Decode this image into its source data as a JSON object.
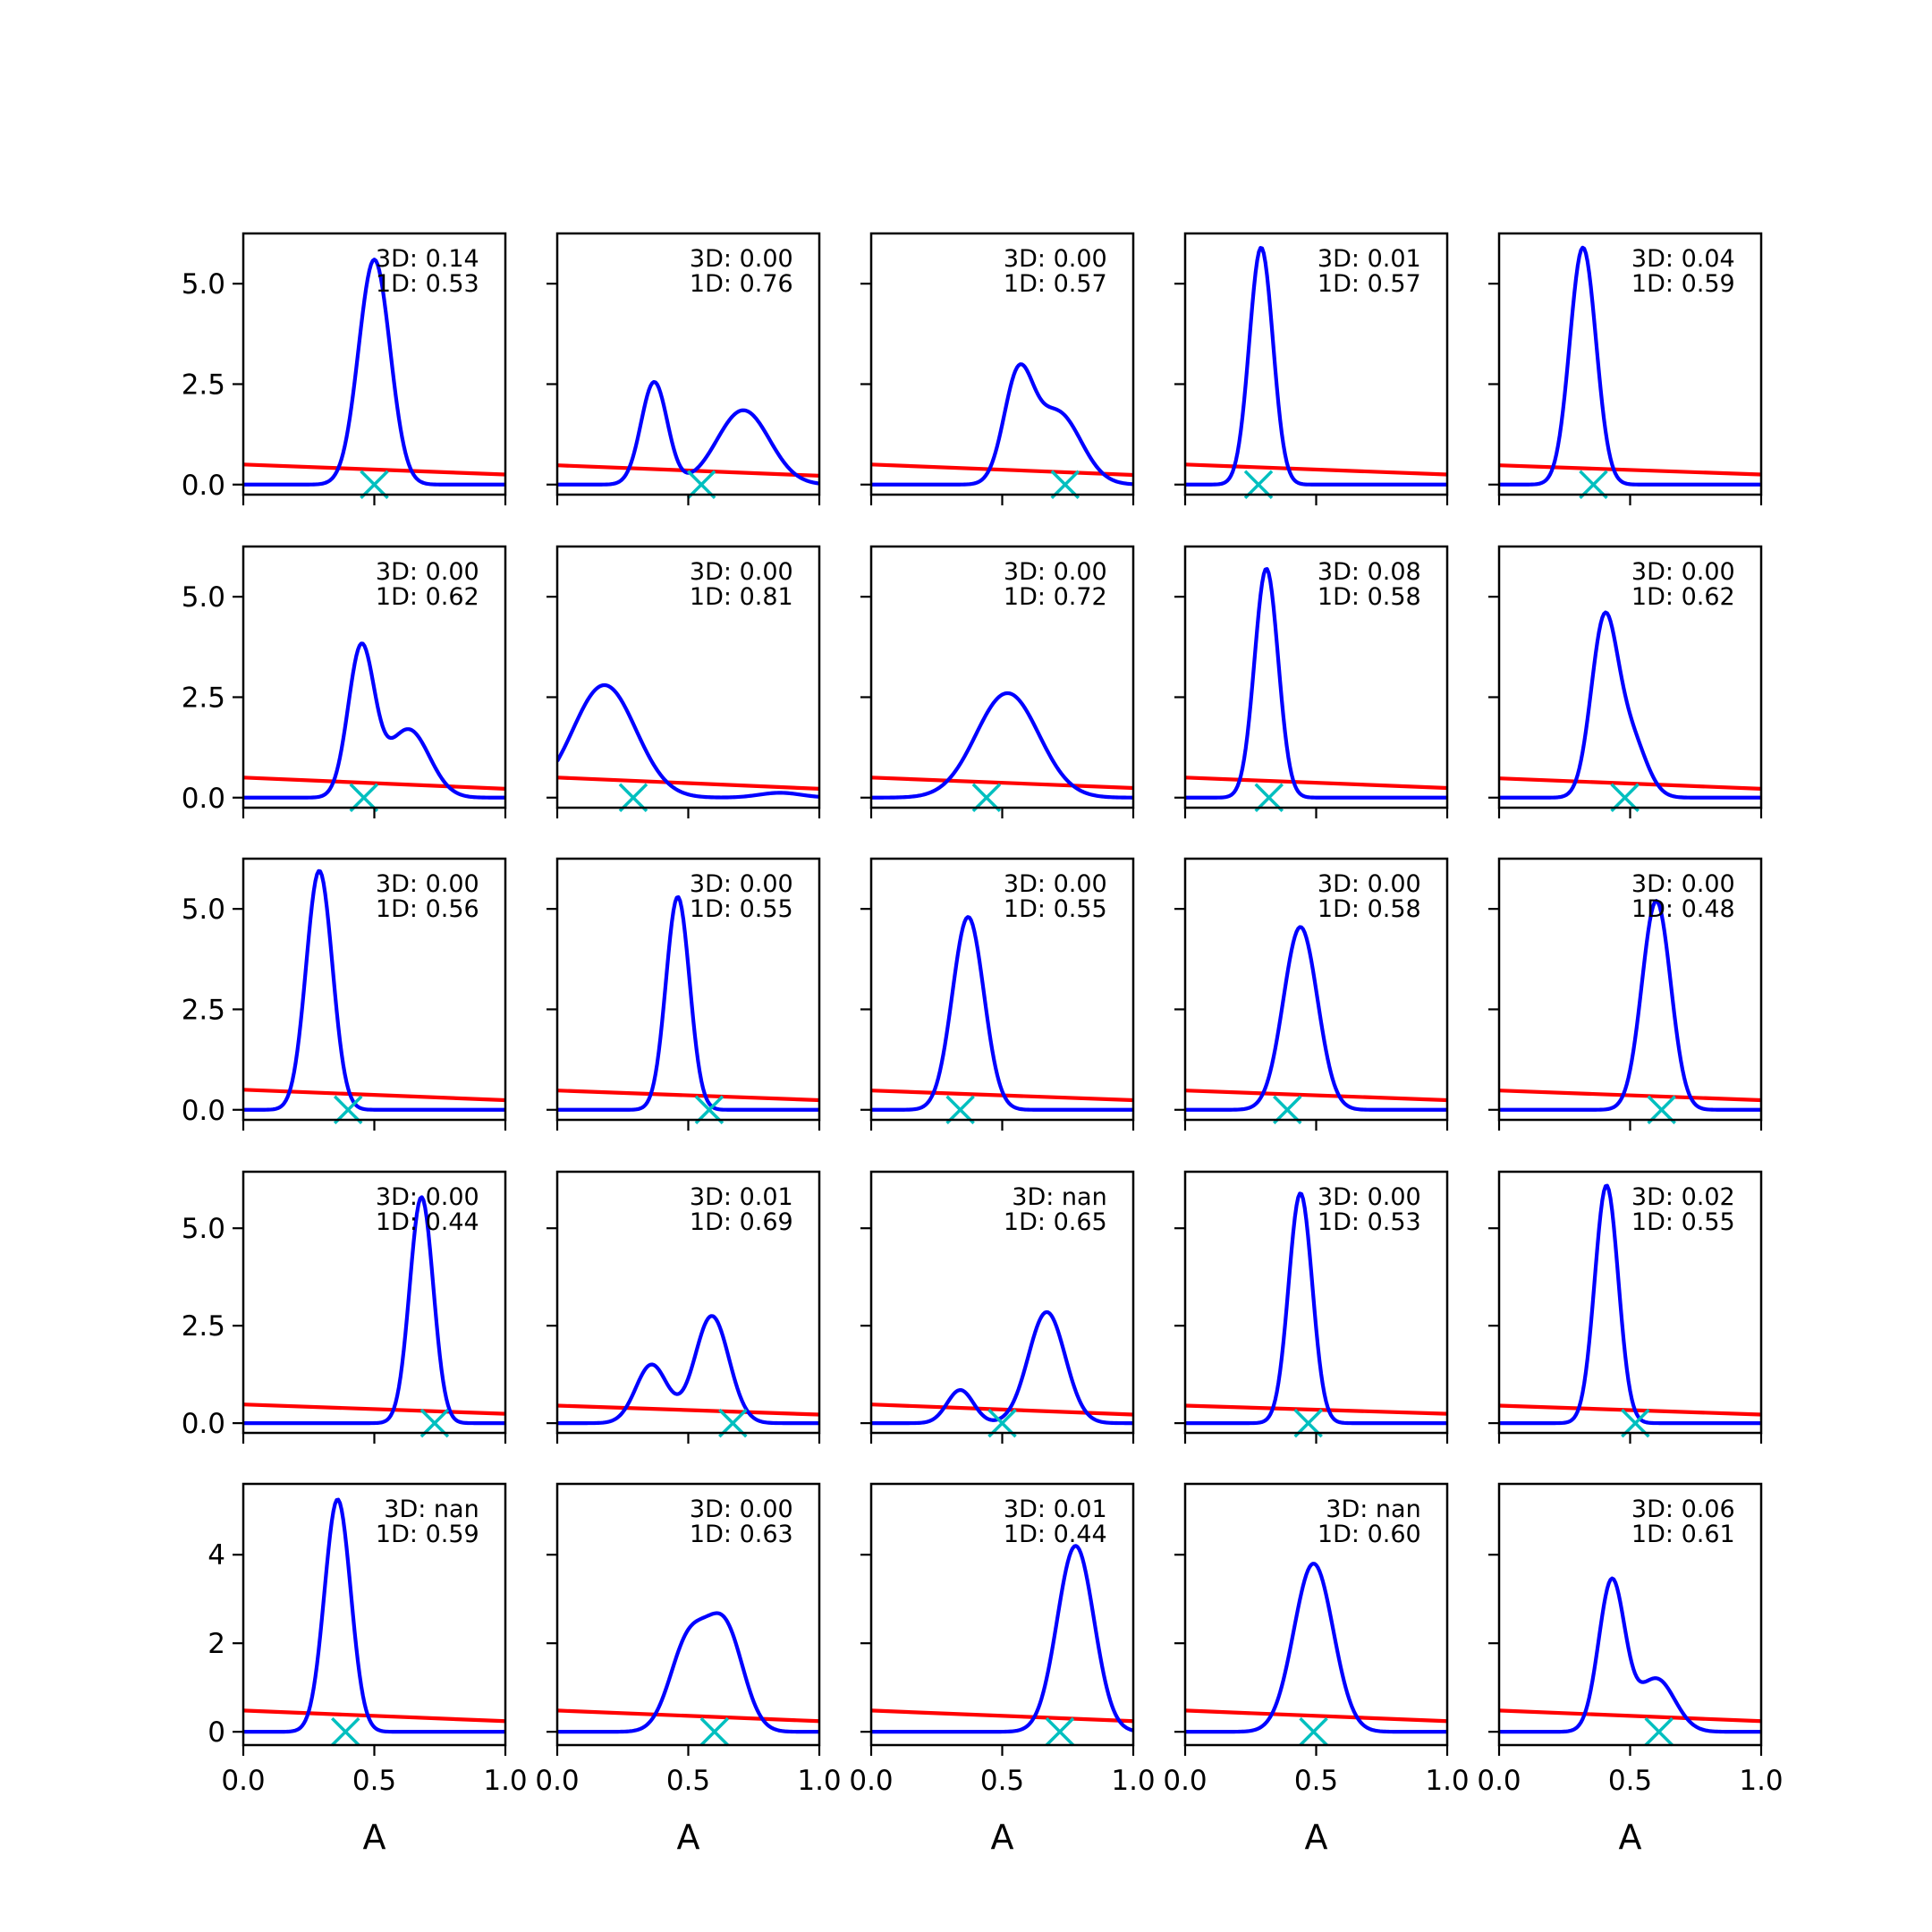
{
  "figure": {
    "background": "#ffffff"
  },
  "colors": {
    "kde": "#0000ff",
    "prior": "#ff0000",
    "marker": "#00bfbf",
    "axes": "#000000"
  },
  "x_axis": {
    "label": "A",
    "ticks": [
      0.0,
      0.5,
      1.0
    ],
    "tick_labels": [
      "0.0",
      "0.5",
      "1.0"
    ],
    "lim": [
      0.0,
      1.0
    ]
  },
  "rows": [
    {
      "ylim": [
        -0.25,
        6.25
      ],
      "yticks": [
        0.0,
        2.5,
        5.0
      ],
      "ytick_labels": [
        "0.0",
        "2.5",
        "5.0"
      ]
    },
    {
      "ylim": [
        -0.25,
        6.25
      ],
      "yticks": [
        0.0,
        2.5,
        5.0
      ],
      "ytick_labels": [
        "0.0",
        "2.5",
        "5.0"
      ]
    },
    {
      "ylim": [
        -0.25,
        6.25
      ],
      "yticks": [
        0.0,
        2.5,
        5.0
      ],
      "ytick_labels": [
        "0.0",
        "2.5",
        "5.0"
      ]
    },
    {
      "ylim": [
        -0.25,
        6.45
      ],
      "yticks": [
        0.0,
        2.5,
        5.0
      ],
      "ytick_labels": [
        "0.0",
        "2.5",
        "5.0"
      ]
    },
    {
      "ylim": [
        -0.3,
        5.6
      ],
      "yticks": [
        0,
        2,
        4
      ],
      "ytick_labels": [
        "0",
        "2",
        "4"
      ]
    }
  ],
  "chart_data": {
    "type": "line",
    "layout": "5x5 grid of small multiples",
    "xlabel": "A",
    "xlim": [
      0,
      1
    ],
    "series_styles": [
      "kde density (blue line)",
      "prior (red line)",
      "marker (cyan x)"
    ],
    "panels": [
      {
        "row": 0,
        "col": 0,
        "text3d": "3D: 0.14",
        "text1d": "1D: 0.53",
        "marker_x": 0.5,
        "peaks": [
          {
            "mu": 0.5,
            "sigma": 0.06,
            "amp": 5.6
          }
        ],
        "prior": [
          0.5,
          0.25
        ]
      },
      {
        "row": 0,
        "col": 1,
        "text3d": "3D: 0.00",
        "text1d": "1D: 0.76",
        "marker_x": 0.55,
        "peaks": [
          {
            "mu": 0.37,
            "sigma": 0.05,
            "amp": 2.55
          },
          {
            "mu": 0.71,
            "sigma": 0.1,
            "amp": 1.85
          }
        ],
        "prior": [
          0.48,
          0.22
        ]
      },
      {
        "row": 0,
        "col": 2,
        "text3d": "3D: 0.00",
        "text1d": "1D: 0.57",
        "marker_x": 0.74,
        "peaks": [
          {
            "mu": 0.56,
            "sigma": 0.055,
            "amp": 2.5
          },
          {
            "mu": 0.71,
            "sigma": 0.09,
            "amp": 1.8
          }
        ],
        "prior": [
          0.5,
          0.24
        ]
      },
      {
        "row": 0,
        "col": 3,
        "text3d": "3D: 0.01",
        "text1d": "1D: 0.57",
        "marker_x": 0.28,
        "peaks": [
          {
            "mu": 0.29,
            "sigma": 0.045,
            "amp": 5.9
          }
        ],
        "prior": [
          0.5,
          0.25
        ]
      },
      {
        "row": 0,
        "col": 4,
        "text3d": "3D: 0.04",
        "text1d": "1D: 0.59",
        "marker_x": 0.36,
        "peaks": [
          {
            "mu": 0.32,
            "sigma": 0.05,
            "amp": 5.9
          }
        ],
        "prior": [
          0.48,
          0.25
        ]
      },
      {
        "row": 1,
        "col": 0,
        "text3d": "3D: 0.00",
        "text1d": "1D: 0.62",
        "marker_x": 0.46,
        "peaks": [
          {
            "mu": 0.45,
            "sigma": 0.05,
            "amp": 3.7
          },
          {
            "mu": 0.63,
            "sigma": 0.08,
            "amp": 1.7
          }
        ],
        "prior": [
          0.5,
          0.22
        ]
      },
      {
        "row": 1,
        "col": 1,
        "text3d": "3D: 0.00",
        "text1d": "1D: 0.81",
        "marker_x": 0.29,
        "peaks": [
          {
            "mu": 0.18,
            "sigma": 0.12,
            "amp": 2.8
          },
          {
            "mu": 0.85,
            "sigma": 0.08,
            "amp": 0.12
          }
        ],
        "prior": [
          0.5,
          0.22
        ]
      },
      {
        "row": 1,
        "col": 2,
        "text3d": "3D: 0.00",
        "text1d": "1D: 0.72",
        "marker_x": 0.44,
        "peaks": [
          {
            "mu": 0.52,
            "sigma": 0.12,
            "amp": 2.6
          }
        ],
        "prior": [
          0.5,
          0.24
        ]
      },
      {
        "row": 1,
        "col": 3,
        "text3d": "3D: 0.08",
        "text1d": "1D: 0.58",
        "marker_x": 0.32,
        "peaks": [
          {
            "mu": 0.31,
            "sigma": 0.045,
            "amp": 5.7
          }
        ],
        "prior": [
          0.5,
          0.24
        ]
      },
      {
        "row": 1,
        "col": 4,
        "text3d": "3D: 0.00",
        "text1d": "1D: 0.62",
        "marker_x": 0.48,
        "peaks": [
          {
            "mu": 0.4,
            "sigma": 0.05,
            "amp": 4.2
          },
          {
            "mu": 0.5,
            "sigma": 0.06,
            "amp": 1.5
          }
        ],
        "prior": [
          0.48,
          0.22
        ]
      },
      {
        "row": 2,
        "col": 0,
        "text3d": "3D: 0.00",
        "text1d": "1D: 0.56",
        "marker_x": 0.4,
        "peaks": [
          {
            "mu": 0.29,
            "sigma": 0.05,
            "amp": 5.95
          }
        ],
        "prior": [
          0.5,
          0.24
        ]
      },
      {
        "row": 2,
        "col": 1,
        "text3d": "3D: 0.00",
        "text1d": "1D: 0.55",
        "marker_x": 0.58,
        "peaks": [
          {
            "mu": 0.46,
            "sigma": 0.045,
            "amp": 5.3
          }
        ],
        "prior": [
          0.48,
          0.24
        ]
      },
      {
        "row": 2,
        "col": 2,
        "text3d": "3D: 0.00",
        "text1d": "1D: 0.55",
        "marker_x": 0.34,
        "peaks": [
          {
            "mu": 0.37,
            "sigma": 0.06,
            "amp": 4.8
          }
        ],
        "prior": [
          0.48,
          0.24
        ]
      },
      {
        "row": 2,
        "col": 3,
        "text3d": "3D: 0.00",
        "text1d": "1D: 0.58",
        "marker_x": 0.39,
        "peaks": [
          {
            "mu": 0.44,
            "sigma": 0.065,
            "amp": 4.55
          }
        ],
        "prior": [
          0.48,
          0.24
        ]
      },
      {
        "row": 2,
        "col": 4,
        "text3d": "3D: 0.00",
        "text1d": "1D: 0.48",
        "marker_x": 0.62,
        "peaks": [
          {
            "mu": 0.6,
            "sigma": 0.055,
            "amp": 5.2
          }
        ],
        "prior": [
          0.48,
          0.24
        ]
      },
      {
        "row": 3,
        "col": 0,
        "text3d": "3D: 0.00",
        "text1d": "1D: 0.44",
        "marker_x": 0.73,
        "peaks": [
          {
            "mu": 0.68,
            "sigma": 0.045,
            "amp": 5.8
          }
        ],
        "prior": [
          0.48,
          0.24
        ]
      },
      {
        "row": 3,
        "col": 1,
        "text3d": "3D: 0.01",
        "text1d": "1D: 0.69",
        "marker_x": 0.67,
        "peaks": [
          {
            "mu": 0.36,
            "sigma": 0.06,
            "amp": 1.5
          },
          {
            "mu": 0.59,
            "sigma": 0.065,
            "amp": 2.75
          }
        ],
        "prior": [
          0.45,
          0.22
        ]
      },
      {
        "row": 3,
        "col": 2,
        "text3d": "3D: nan",
        "text1d": "1D: 0.65",
        "marker_x": 0.5,
        "peaks": [
          {
            "mu": 0.34,
            "sigma": 0.05,
            "amp": 0.85
          },
          {
            "mu": 0.67,
            "sigma": 0.07,
            "amp": 2.85
          }
        ],
        "prior": [
          0.48,
          0.22
        ]
      },
      {
        "row": 3,
        "col": 3,
        "text3d": "3D: 0.00",
        "text1d": "1D: 0.53",
        "marker_x": 0.47,
        "peaks": [
          {
            "mu": 0.44,
            "sigma": 0.045,
            "amp": 5.9
          }
        ],
        "prior": [
          0.45,
          0.24
        ]
      },
      {
        "row": 3,
        "col": 4,
        "text3d": "3D: 0.02",
        "text1d": "1D: 0.55",
        "marker_x": 0.52,
        "peaks": [
          {
            "mu": 0.41,
            "sigma": 0.045,
            "amp": 6.1
          }
        ],
        "prior": [
          0.45,
          0.22
        ]
      },
      {
        "row": 4,
        "col": 0,
        "text3d": "3D: nan",
        "text1d": "1D: 0.59",
        "marker_x": 0.39,
        "peaks": [
          {
            "mu": 0.36,
            "sigma": 0.05,
            "amp": 5.25
          }
        ],
        "prior": [
          0.48,
          0.24
        ]
      },
      {
        "row": 4,
        "col": 1,
        "text3d": "3D: 0.00",
        "text1d": "1D: 0.63",
        "marker_x": 0.6,
        "peaks": [
          {
            "mu": 0.5,
            "sigma": 0.07,
            "amp": 2.0
          },
          {
            "mu": 0.64,
            "sigma": 0.07,
            "amp": 2.3
          }
        ],
        "prior": [
          0.48,
          0.24
        ]
      },
      {
        "row": 4,
        "col": 2,
        "text3d": "3D: 0.01",
        "text1d": "1D: 0.44",
        "marker_x": 0.72,
        "peaks": [
          {
            "mu": 0.78,
            "sigma": 0.07,
            "amp": 4.2
          }
        ],
        "prior": [
          0.48,
          0.24
        ]
      },
      {
        "row": 4,
        "col": 3,
        "text3d": "3D: nan",
        "text1d": "1D: 0.60",
        "marker_x": 0.49,
        "peaks": [
          {
            "mu": 0.49,
            "sigma": 0.075,
            "amp": 3.8
          }
        ],
        "prior": [
          0.48,
          0.24
        ]
      },
      {
        "row": 4,
        "col": 4,
        "text3d": "3D: 0.06",
        "text1d": "1D: 0.61",
        "marker_x": 0.61,
        "peaks": [
          {
            "mu": 0.43,
            "sigma": 0.05,
            "amp": 3.4
          },
          {
            "mu": 0.6,
            "sigma": 0.07,
            "amp": 1.2
          }
        ],
        "prior": [
          0.48,
          0.24
        ]
      }
    ]
  }
}
